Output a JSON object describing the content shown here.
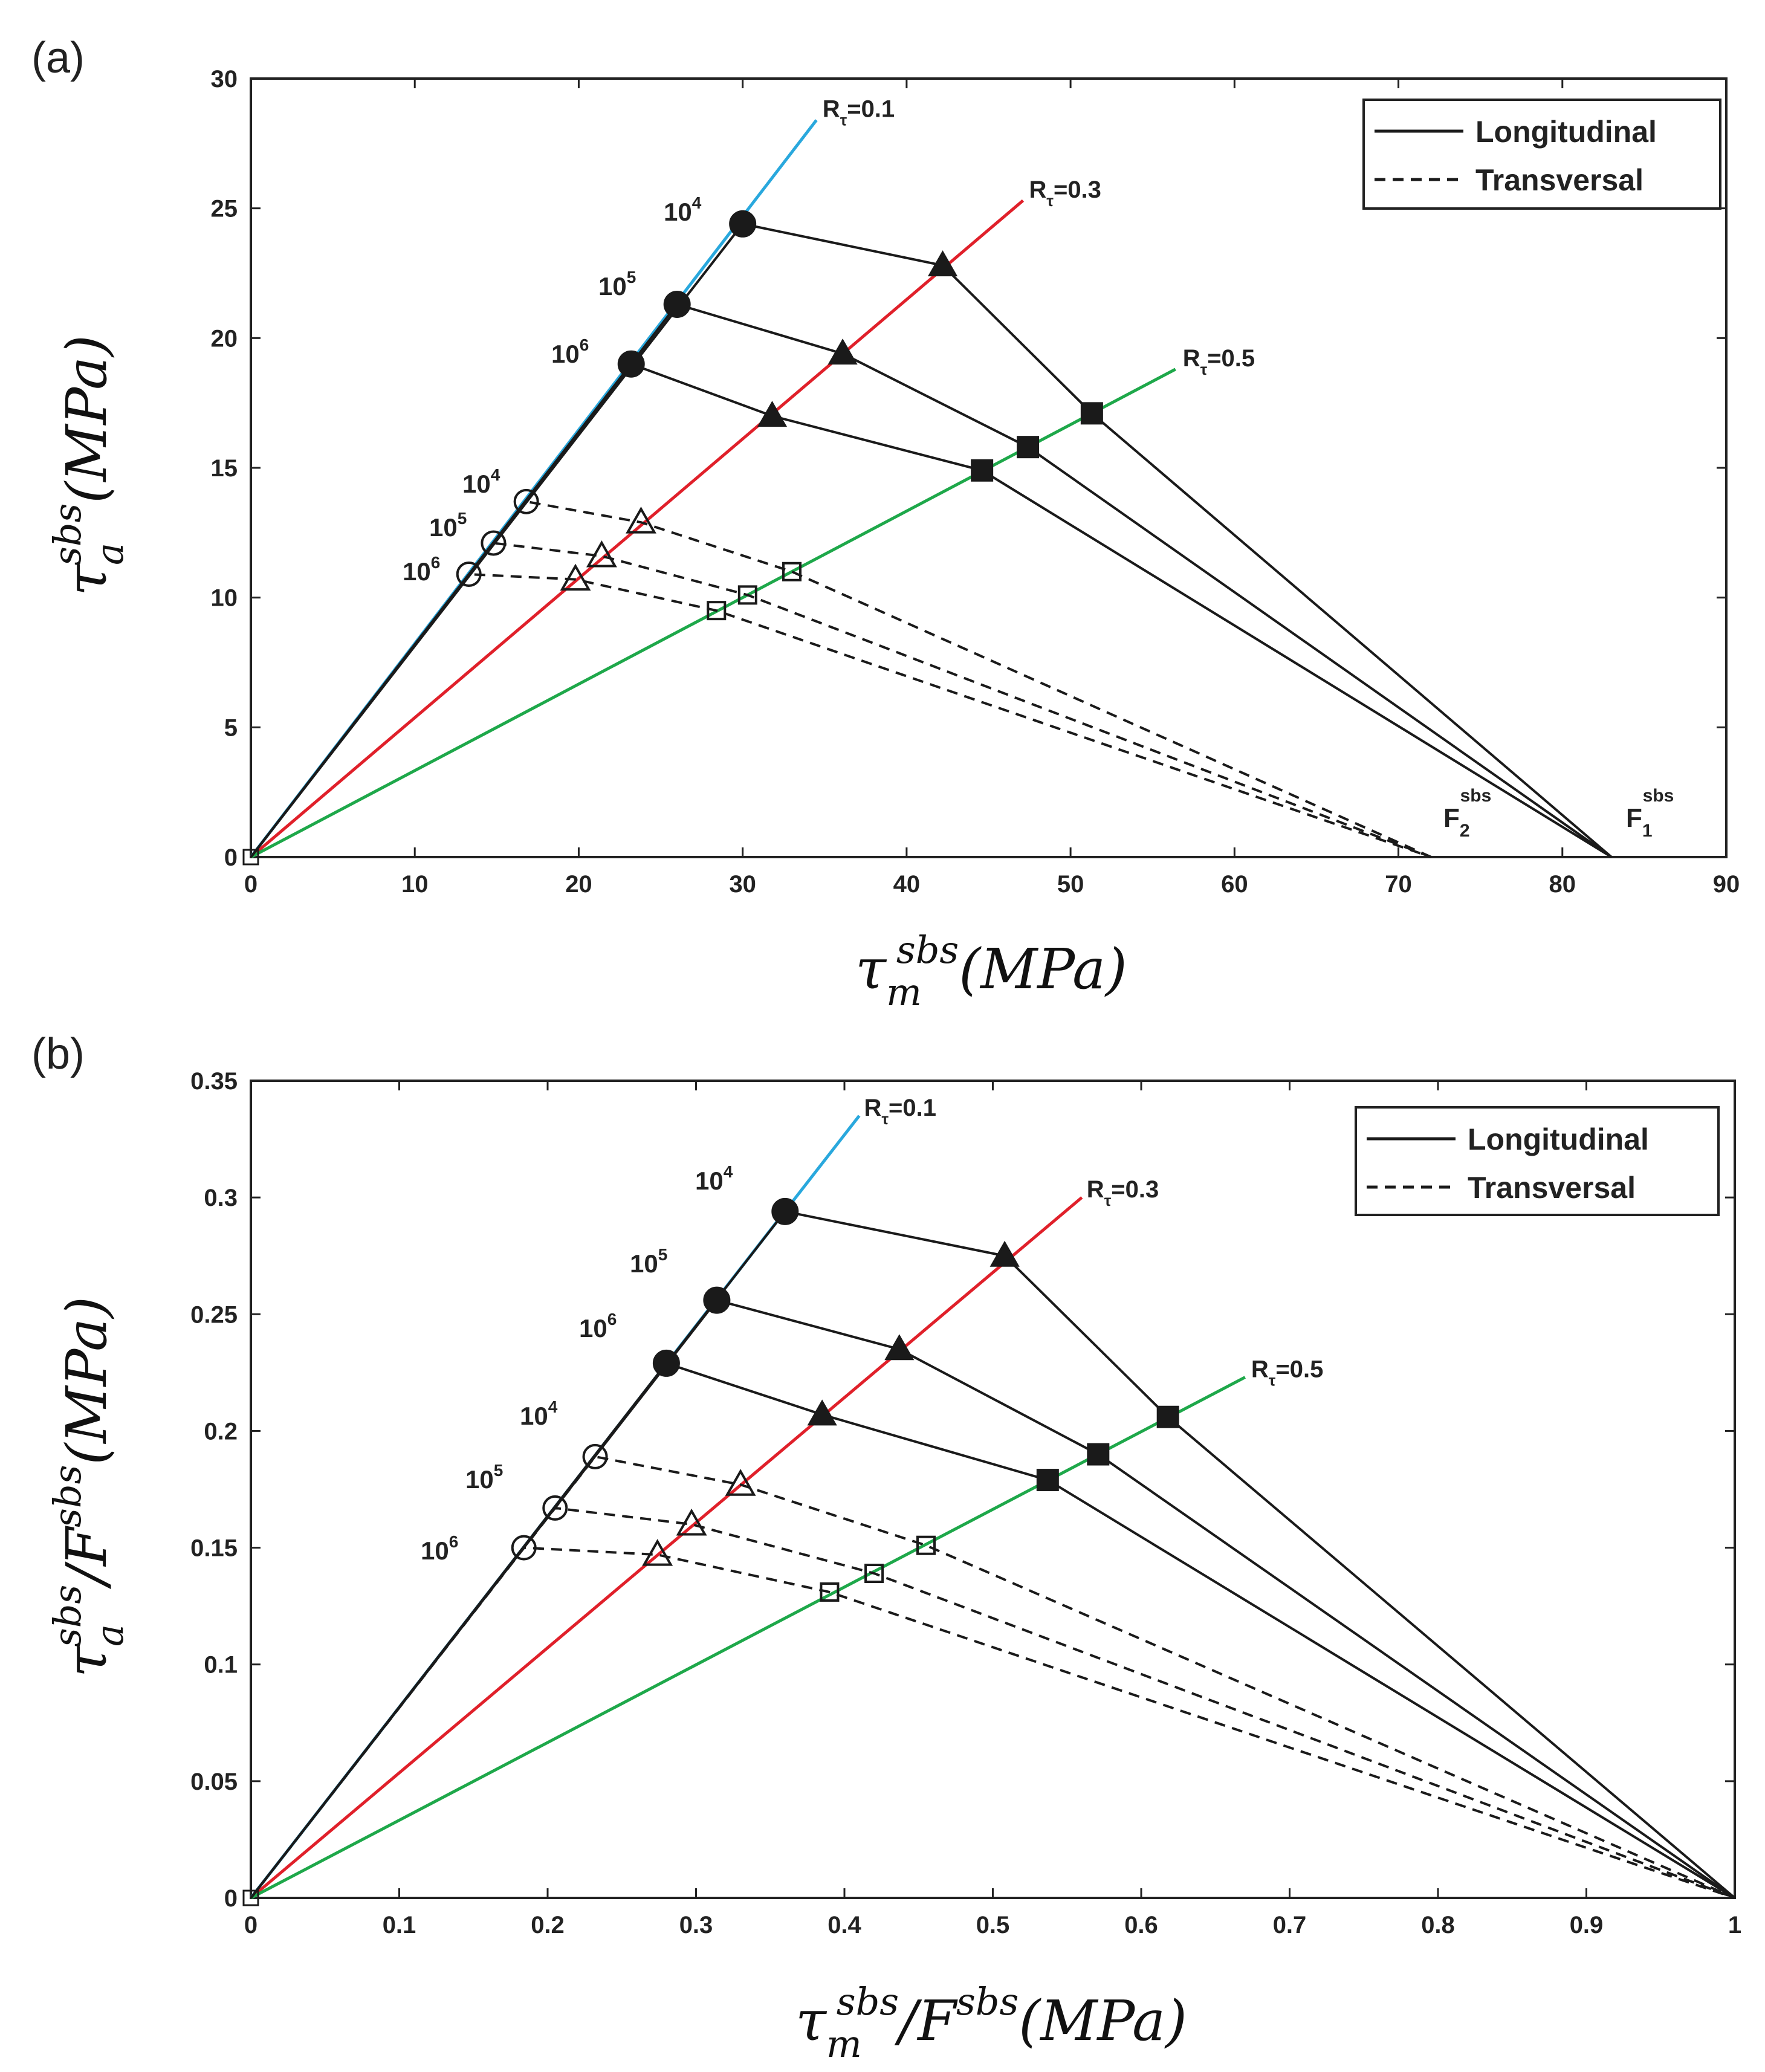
{
  "colors": {
    "r01": "#29a8dd",
    "r03": "#e0202a",
    "r05": "#1ea84a",
    "fatigue": "#1a1a1a",
    "axis": "#222222"
  },
  "chart_data": [
    {
      "type": "scatter",
      "panel_label": "(a)",
      "xlabel": "τ_m^sbs (MPa)",
      "ylabel": "τ_a^sbs (MPa)",
      "xlabel_parts": {
        "tau": "τ",
        "sub": "m",
        "sup": "sbs",
        "tail": "(MPa)"
      },
      "ylabel_parts": {
        "tau": "τ",
        "sub": "a",
        "sup": "sbs",
        "tail": "(MPa)"
      },
      "xlim": [
        0,
        90
      ],
      "ylim": [
        0,
        30
      ],
      "xticks": [
        0,
        10,
        20,
        30,
        40,
        50,
        60,
        70,
        80,
        90
      ],
      "yticks": [
        0,
        5,
        10,
        15,
        20,
        25,
        30
      ],
      "xtick_labels": [
        "0",
        "10",
        "20",
        "30",
        "40",
        "50",
        "60",
        "70",
        "80",
        "90"
      ],
      "ytick_labels": [
        "0",
        "5",
        "10",
        "15",
        "20",
        "25",
        "30"
      ],
      "legend": {
        "position": "top-right",
        "entries": [
          {
            "label": "Longitudinal",
            "style": "solid"
          },
          {
            "label": "Transversal",
            "style": "dashed"
          }
        ]
      },
      "r_lines": [
        {
          "name": "R",
          "sub": "τ",
          "value": "=0.1",
          "color_key": "r01",
          "end": [
            34.5,
            28.4
          ]
        },
        {
          "name": "R",
          "sub": "τ",
          "value": "=0.3",
          "color_key": "r03",
          "end": [
            47.1,
            25.3
          ]
        },
        {
          "name": "R",
          "sub": "τ",
          "value": "=0.5",
          "color_key": "r05",
          "end": [
            56.4,
            18.8
          ]
        }
      ],
      "intercepts": [
        {
          "name": "F",
          "sub": "1",
          "sup": "sbs",
          "x": 83
        },
        {
          "name": "F",
          "sub": "2",
          "sup": "sbs",
          "x": 72
        }
      ],
      "series": [
        {
          "name": "Longitudinal 10^4",
          "style": "solid",
          "filled": true,
          "cycles_base": "10",
          "cycles_exp": "4",
          "label_anchor": "R01",
          "points": [
            [
              0,
              0
            ],
            [
              30.0,
              24.4
            ],
            [
              42.2,
              22.8
            ],
            [
              51.3,
              17.1
            ],
            [
              83,
              0
            ]
          ]
        },
        {
          "name": "Longitudinal 10^5",
          "style": "solid",
          "filled": true,
          "cycles_base": "10",
          "cycles_exp": "5",
          "label_anchor": "R01",
          "points": [
            [
              0,
              0
            ],
            [
              26.0,
              21.3
            ],
            [
              36.1,
              19.4
            ],
            [
              47.4,
              15.8
            ],
            [
              83,
              0
            ]
          ]
        },
        {
          "name": "Longitudinal 10^6",
          "style": "solid",
          "filled": true,
          "cycles_base": "10",
          "cycles_exp": "6",
          "label_anchor": "R01",
          "points": [
            [
              0,
              0
            ],
            [
              23.2,
              19.0
            ],
            [
              31.8,
              17.0
            ],
            [
              44.6,
              14.9
            ],
            [
              83,
              0
            ]
          ]
        },
        {
          "name": "Transversal 10^4",
          "style": "dashed",
          "filled": false,
          "cycles_base": "10",
          "cycles_exp": "4",
          "label_anchor": "R01",
          "points": [
            [
              0,
              0
            ],
            [
              16.8,
              13.7
            ],
            [
              23.8,
              12.9
            ],
            [
              33.0,
              11.0
            ],
            [
              72,
              0
            ]
          ]
        },
        {
          "name": "Transversal 10^5",
          "style": "dashed",
          "filled": false,
          "cycles_base": "10",
          "cycles_exp": "5",
          "label_anchor": "R01",
          "points": [
            [
              0,
              0
            ],
            [
              14.8,
              12.1
            ],
            [
              21.4,
              11.6
            ],
            [
              30.3,
              10.1
            ],
            [
              72,
              0
            ]
          ]
        },
        {
          "name": "Transversal 10^6",
          "style": "dashed",
          "filled": false,
          "cycles_base": "10",
          "cycles_exp": "6",
          "label_anchor": "R01",
          "points": [
            [
              0,
              0
            ],
            [
              13.3,
              10.9
            ],
            [
              19.8,
              10.7
            ],
            [
              28.4,
              9.5
            ],
            [
              72,
              0
            ]
          ]
        }
      ]
    },
    {
      "type": "scatter",
      "panel_label": "(b)",
      "xlabel": "τ_m^sbs / F^sbs (MPa)",
      "ylabel": "τ_a^sbs / F^sbs (MPa)",
      "xlabel_parts": {
        "tau": "τ",
        "sub": "m",
        "sup": "sbs",
        "slash": "/F",
        "sup2": "sbs",
        "tail": "(MPa)"
      },
      "ylabel_parts": {
        "tau": "τ",
        "sub": "a",
        "sup": "sbs",
        "slash": "/F",
        "sup2": "sbs",
        "tail": "(MPa)"
      },
      "xlim": [
        0,
        1
      ],
      "ylim": [
        0,
        0.35
      ],
      "xticks": [
        0,
        0.1,
        0.2,
        0.3,
        0.4,
        0.5,
        0.6,
        0.7,
        0.8,
        0.9,
        1
      ],
      "yticks": [
        0,
        0.05,
        0.1,
        0.15,
        0.2,
        0.25,
        0.3,
        0.35
      ],
      "xtick_labels": [
        "0",
        "0.1",
        "0.2",
        "0.3",
        "0.4",
        "0.5",
        "0.6",
        "0.7",
        "0.8",
        "0.9",
        "1"
      ],
      "ytick_labels": [
        "0",
        "0.05",
        "0.1",
        "0.15",
        "0.2",
        "0.25",
        "0.3",
        "0.35"
      ],
      "legend": {
        "position": "top-right",
        "entries": [
          {
            "label": "Longitudinal",
            "style": "solid"
          },
          {
            "label": "Transversal",
            "style": "dashed"
          }
        ]
      },
      "r_lines": [
        {
          "name": "R",
          "sub": "τ",
          "value": "=0.1",
          "color_key": "r01",
          "end": [
            0.41,
            0.335
          ]
        },
        {
          "name": "R",
          "sub": "τ",
          "value": "=0.3",
          "color_key": "r03",
          "end": [
            0.56,
            0.3
          ]
        },
        {
          "name": "R",
          "sub": "τ",
          "value": "=0.5",
          "color_key": "r05",
          "end": [
            0.67,
            0.223
          ]
        }
      ],
      "intercepts": [],
      "series": [
        {
          "name": "Longitudinal 10^4",
          "style": "solid",
          "filled": true,
          "cycles_base": "10",
          "cycles_exp": "4",
          "label_anchor": "R01",
          "points": [
            [
              0,
              0
            ],
            [
              0.36,
              0.294
            ],
            [
              0.508,
              0.275
            ],
            [
              0.618,
              0.206
            ],
            [
              1,
              0
            ]
          ]
        },
        {
          "name": "Longitudinal 10^5",
          "style": "solid",
          "filled": true,
          "cycles_base": "10",
          "cycles_exp": "5",
          "label_anchor": "R01",
          "points": [
            [
              0,
              0
            ],
            [
              0.314,
              0.256
            ],
            [
              0.437,
              0.235
            ],
            [
              0.571,
              0.19
            ],
            [
              1,
              0
            ]
          ]
        },
        {
          "name": "Longitudinal 10^6",
          "style": "solid",
          "filled": true,
          "cycles_base": "10",
          "cycles_exp": "6",
          "label_anchor": "R01",
          "points": [
            [
              0,
              0
            ],
            [
              0.28,
              0.229
            ],
            [
              0.385,
              0.207
            ],
            [
              0.537,
              0.179
            ],
            [
              1,
              0
            ]
          ]
        },
        {
          "name": "Transversal 10^4",
          "style": "dashed",
          "filled": false,
          "cycles_base": "10",
          "cycles_exp": "4",
          "label_anchor": "R01",
          "points": [
            [
              0,
              0
            ],
            [
              0.232,
              0.189
            ],
            [
              0.33,
              0.177
            ],
            [
              0.455,
              0.151
            ],
            [
              1,
              0
            ]
          ]
        },
        {
          "name": "Transversal 10^5",
          "style": "dashed",
          "filled": false,
          "cycles_base": "10",
          "cycles_exp": "5",
          "label_anchor": "R01",
          "points": [
            [
              0,
              0
            ],
            [
              0.205,
              0.167
            ],
            [
              0.297,
              0.16
            ],
            [
              0.42,
              0.139
            ],
            [
              1,
              0
            ]
          ]
        },
        {
          "name": "Transversal 10^6",
          "style": "dashed",
          "filled": false,
          "cycles_base": "10",
          "cycles_exp": "6",
          "label_anchor": "R01",
          "points": [
            [
              0,
              0
            ],
            [
              0.184,
              0.15
            ],
            [
              0.274,
              0.147
            ],
            [
              0.39,
              0.131
            ],
            [
              1,
              0
            ]
          ]
        }
      ]
    }
  ]
}
